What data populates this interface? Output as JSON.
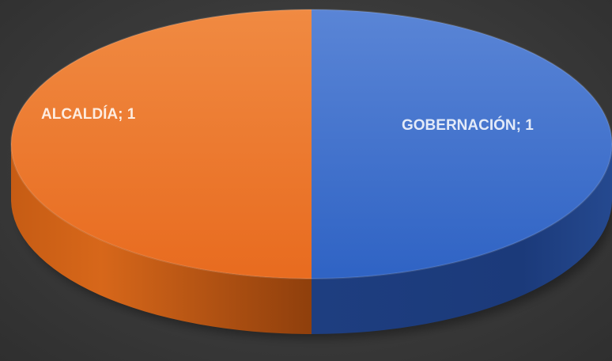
{
  "chart_data": {
    "type": "pie",
    "style": "3d",
    "categories": [
      "ALCALDÍA",
      "GOBERNACIÓN"
    ],
    "values": [
      1,
      1
    ],
    "data_labels": [
      "ALCALDÍA; 1",
      "GOBERNACIÓN; 1"
    ],
    "colors": [
      "#ed7d31",
      "#4472c4"
    ],
    "title": "",
    "legend": false
  },
  "background_color": "#3b3b3b"
}
